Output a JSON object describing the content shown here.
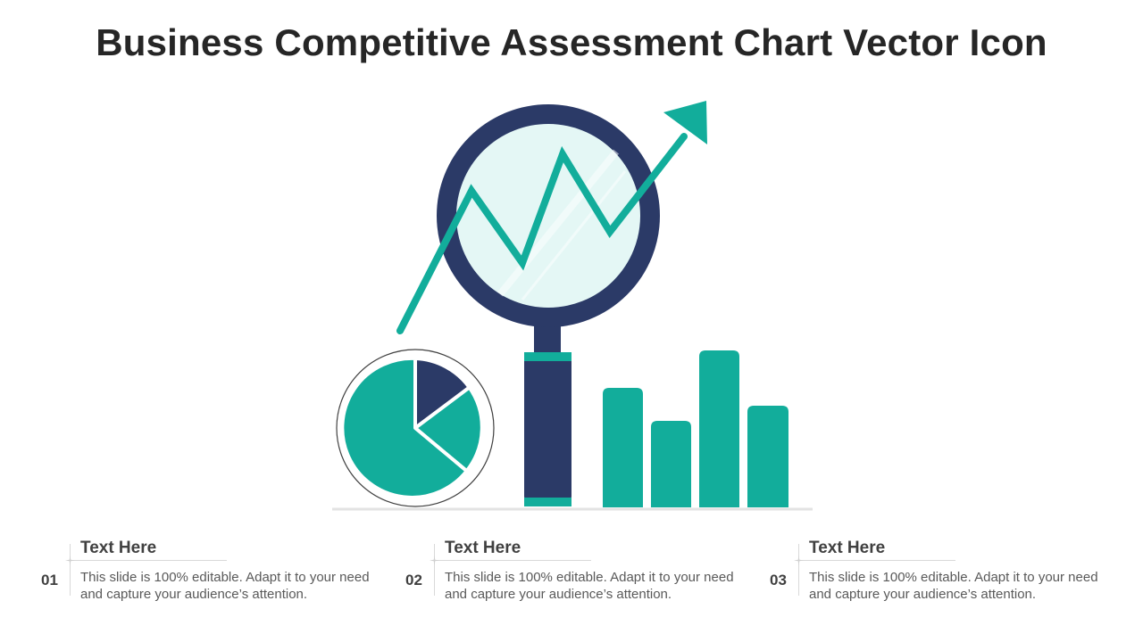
{
  "title": "Business Competitive Assessment Chart Vector Icon",
  "colors": {
    "navy": "#2b3a67",
    "teal": "#12ad9b",
    "lens": "#e4f7f5",
    "text_dark": "#262626",
    "text_body": "#595959"
  },
  "icons": [
    "magnifier-icon",
    "trend-arrow-icon",
    "pie-chart-icon",
    "bar-chart-icon"
  ],
  "items": [
    {
      "num": "01",
      "heading": "Text Here",
      "body": "This slide is 100% editable. Adapt it to your need and capture your audience’s attention."
    },
    {
      "num": "02",
      "heading": "Text Here",
      "body": "This slide is 100% editable. Adapt it to your need and capture your audience’s attention."
    },
    {
      "num": "03",
      "heading": "Text Here",
      "body": "This slide is 100% editable. Adapt it to your need and capture your audience’s attention."
    }
  ]
}
